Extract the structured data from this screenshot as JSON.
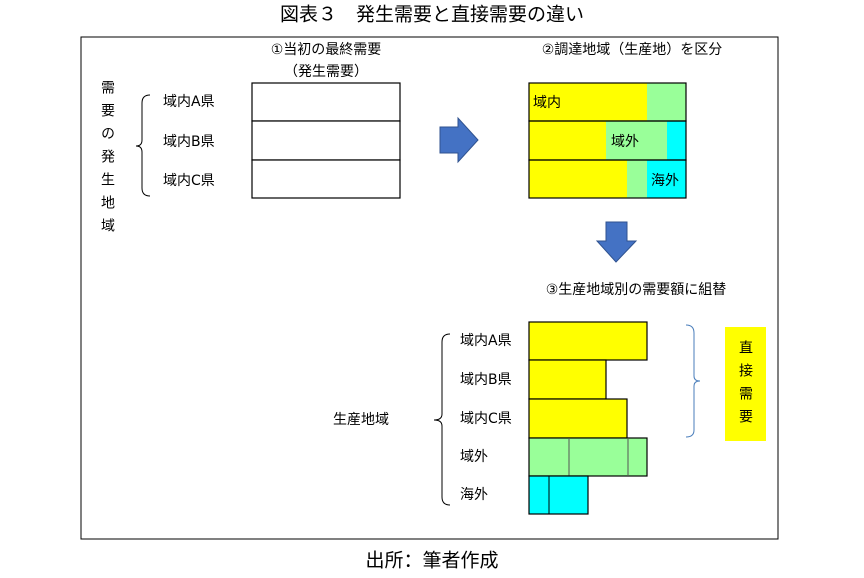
{
  "header": {
    "title": "図表３　発生需要と直接需要の違い"
  },
  "footer": {
    "source": "出所：筆者作成"
  },
  "step1": {
    "label": "①当初の最終需要",
    "sublabel": "（発生需要）",
    "side_label": "需要の発生地域",
    "rows": [
      "域内A県",
      "域内B県",
      "域内C県"
    ]
  },
  "step2": {
    "label": "②調達地域（生産地）を区分",
    "segments": [
      "域内",
      "域外",
      "海外"
    ]
  },
  "step3": {
    "label": "③生産地域別の需要額に組替",
    "side_label": "生産地域",
    "rows": [
      "域内A県",
      "域内B県",
      "域内C県",
      "域外",
      "海外"
    ],
    "result_label": "直接需要"
  }
}
